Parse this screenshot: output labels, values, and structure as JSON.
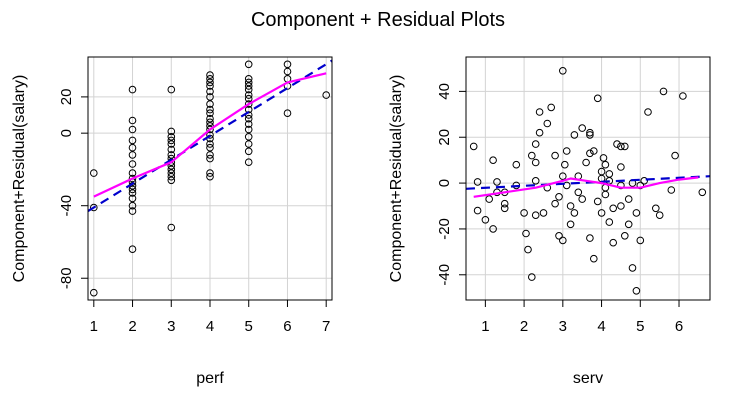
{
  "main_title": "Component + Residual Plots",
  "chart_data": [
    {
      "type": "scatter",
      "xlabel": "perf",
      "ylabel": "Component+Residual(salary)",
      "xlim": [
        0.85,
        7.15
      ],
      "ylim": [
        -92,
        42
      ],
      "xticks": [
        1,
        2,
        3,
        4,
        5,
        6,
        7
      ],
      "yticks": [
        -80,
        -40,
        0,
        20
      ],
      "grid": true,
      "linear_fit": {
        "color": "#0000cd",
        "dash": "dashed",
        "points": [
          [
            0.85,
            -43
          ],
          [
            7.15,
            40
          ]
        ]
      },
      "smooth_fit": {
        "color": "#ff00ff",
        "points": [
          [
            1,
            -35
          ],
          [
            2,
            -25
          ],
          [
            3,
            -16
          ],
          [
            4,
            2
          ],
          [
            5,
            16
          ],
          [
            6,
            28
          ],
          [
            7,
            33
          ]
        ]
      },
      "series": [
        {
          "points": [
            [
              1,
              -88
            ],
            [
              1,
              -41
            ],
            [
              1,
              -22
            ],
            [
              2,
              -64
            ],
            [
              2,
              -43
            ],
            [
              2,
              -40
            ],
            [
              2,
              -36
            ],
            [
              2,
              -33
            ],
            [
              2,
              -31
            ],
            [
              2,
              -29
            ],
            [
              2,
              -27
            ],
            [
              2,
              -25
            ],
            [
              2,
              -22
            ],
            [
              2,
              -17
            ],
            [
              2,
              -12
            ],
            [
              2,
              -8
            ],
            [
              2,
              -4
            ],
            [
              2,
              2
            ],
            [
              2,
              7
            ],
            [
              2,
              24
            ],
            [
              3,
              -52
            ],
            [
              3,
              -26
            ],
            [
              3,
              -24
            ],
            [
              3,
              -22
            ],
            [
              3,
              -20
            ],
            [
              3,
              -18
            ],
            [
              3,
              -16
            ],
            [
              3,
              -14
            ],
            [
              3,
              -12
            ],
            [
              3,
              -9
            ],
            [
              3,
              -6
            ],
            [
              3,
              -4
            ],
            [
              3,
              -2
            ],
            [
              3,
              1
            ],
            [
              3,
              24
            ],
            [
              4,
              -24
            ],
            [
              4,
              -22
            ],
            [
              4,
              -14
            ],
            [
              4,
              -12
            ],
            [
              4,
              -8
            ],
            [
              4,
              -6
            ],
            [
              4,
              -3
            ],
            [
              4,
              -1
            ],
            [
              4,
              2
            ],
            [
              4,
              4
            ],
            [
              4,
              6
            ],
            [
              4,
              8
            ],
            [
              4,
              11
            ],
            [
              4,
              13
            ],
            [
              4,
              16
            ],
            [
              4,
              20
            ],
            [
              4,
              23
            ],
            [
              4,
              26
            ],
            [
              4,
              28
            ],
            [
              4,
              30
            ],
            [
              4,
              32
            ],
            [
              5,
              -16
            ],
            [
              5,
              -10
            ],
            [
              5,
              -6
            ],
            [
              5,
              -2
            ],
            [
              5,
              2
            ],
            [
              5,
              5
            ],
            [
              5,
              8
            ],
            [
              5,
              10
            ],
            [
              5,
              13
            ],
            [
              5,
              16
            ],
            [
              5,
              19
            ],
            [
              5,
              21
            ],
            [
              5,
              24
            ],
            [
              5,
              26
            ],
            [
              5,
              28
            ],
            [
              5,
              30
            ],
            [
              5,
              38
            ],
            [
              6,
              11
            ],
            [
              6,
              26
            ],
            [
              6,
              30
            ],
            [
              6,
              34
            ],
            [
              6,
              38
            ],
            [
              7,
              21
            ]
          ]
        }
      ]
    },
    {
      "type": "scatter",
      "xlabel": "serv",
      "ylabel": "Component+Residual(salary)",
      "xlim": [
        0.5,
        6.8
      ],
      "ylim": [
        -51,
        55
      ],
      "xticks": [
        1,
        2,
        3,
        4,
        5,
        6
      ],
      "yticks": [
        -40,
        -20,
        0,
        20,
        40
      ],
      "grid": true,
      "linear_fit": {
        "color": "#0000cd",
        "dash": "dashed",
        "points": [
          [
            0.5,
            -2.5
          ],
          [
            6.8,
            3
          ]
        ]
      },
      "smooth_fit": {
        "color": "#ff00ff",
        "points": [
          [
            0.7,
            -6
          ],
          [
            1.5,
            -4
          ],
          [
            2.3,
            -2
          ],
          [
            3,
            1
          ],
          [
            3.2,
            2
          ],
          [
            3.6,
            1
          ],
          [
            4,
            0
          ],
          [
            4.5,
            -2
          ],
          [
            5,
            -2
          ],
          [
            5.5,
            0
          ],
          [
            6,
            1.5
          ],
          [
            6.5,
            2.5
          ]
        ]
      },
      "series": [
        {
          "points": [
            [
              0.7,
              16
            ],
            [
              0.8,
              -12
            ],
            [
              0.8,
              0.5
            ],
            [
              1.0,
              -16
            ],
            [
              1.1,
              -7
            ],
            [
              1.2,
              -20
            ],
            [
              1.2,
              10
            ],
            [
              1.3,
              0.5
            ],
            [
              1.3,
              -4
            ],
            [
              1.5,
              -4
            ],
            [
              1.5,
              -9
            ],
            [
              1.5,
              -11
            ],
            [
              1.8,
              8
            ],
            [
              1.8,
              -1
            ],
            [
              2.0,
              -13
            ],
            [
              2.05,
              -22
            ],
            [
              2.1,
              -29
            ],
            [
              2.2,
              12
            ],
            [
              2.2,
              -41
            ],
            [
              2.3,
              17
            ],
            [
              2.3,
              1
            ],
            [
              2.3,
              9
            ],
            [
              2.3,
              -14
            ],
            [
              2.4,
              22
            ],
            [
              2.4,
              31
            ],
            [
              2.5,
              -13
            ],
            [
              2.6,
              26
            ],
            [
              2.6,
              -2
            ],
            [
              2.7,
              33
            ],
            [
              2.8,
              12
            ],
            [
              2.8,
              -9
            ],
            [
              2.9,
              -23
            ],
            [
              2.9,
              -6
            ],
            [
              3.0,
              -25
            ],
            [
              3.0,
              49
            ],
            [
              3.0,
              3
            ],
            [
              3.05,
              8
            ],
            [
              3.1,
              14
            ],
            [
              3.1,
              -1
            ],
            [
              3.2,
              -10
            ],
            [
              3.2,
              -18
            ],
            [
              3.3,
              21
            ],
            [
              3.3,
              -13
            ],
            [
              3.4,
              3
            ],
            [
              3.4,
              -4
            ],
            [
              3.5,
              24
            ],
            [
              3.5,
              -7
            ],
            [
              3.6,
              9
            ],
            [
              3.7,
              22
            ],
            [
              3.7,
              21
            ],
            [
              3.7,
              13
            ],
            [
              3.7,
              -24
            ],
            [
              3.8,
              -33
            ],
            [
              3.8,
              14
            ],
            [
              3.9,
              -8
            ],
            [
              3.9,
              37
            ],
            [
              4.0,
              -13
            ],
            [
              4.0,
              5
            ],
            [
              4.0,
              2
            ],
            [
              4.05,
              11
            ],
            [
              4.1,
              8
            ],
            [
              4.1,
              -5
            ],
            [
              4.1,
              -2
            ],
            [
              4.2,
              4
            ],
            [
              4.2,
              1
            ],
            [
              4.2,
              -17
            ],
            [
              4.3,
              -26
            ],
            [
              4.3,
              -11
            ],
            [
              4.4,
              17
            ],
            [
              4.5,
              16
            ],
            [
              4.5,
              -10
            ],
            [
              4.5,
              7
            ],
            [
              4.5,
              -1
            ],
            [
              4.6,
              16
            ],
            [
              4.6,
              -23
            ],
            [
              4.7,
              -18
            ],
            [
              4.7,
              -7
            ],
            [
              4.8,
              -37
            ],
            [
              4.8,
              0
            ],
            [
              4.9,
              -47
            ],
            [
              4.9,
              -13
            ],
            [
              5.0,
              -25
            ],
            [
              5.0,
              -1
            ],
            [
              5.1,
              1
            ],
            [
              5.2,
              31
            ],
            [
              5.4,
              -11
            ],
            [
              5.5,
              -14
            ],
            [
              5.6,
              40
            ],
            [
              5.8,
              -3
            ],
            [
              5.9,
              12
            ],
            [
              6.1,
              38
            ],
            [
              6.6,
              -4
            ]
          ]
        }
      ]
    }
  ]
}
